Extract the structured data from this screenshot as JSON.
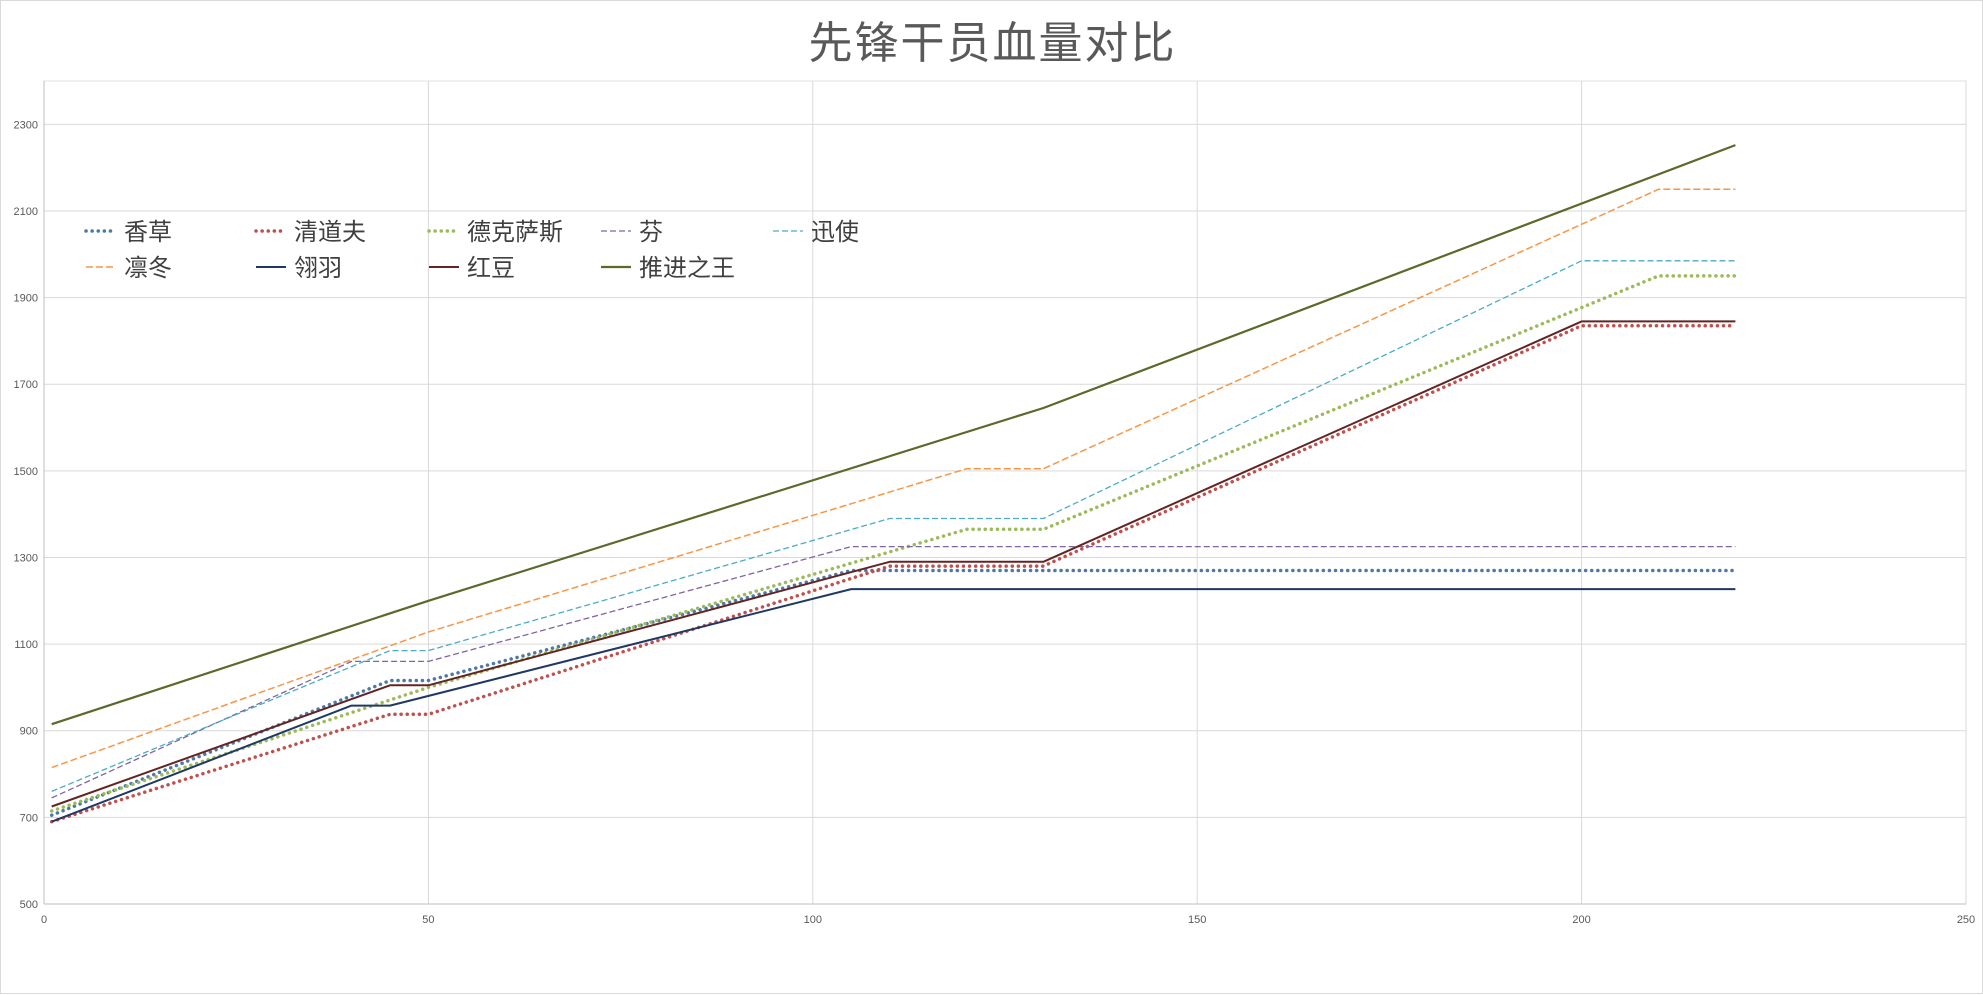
{
  "chart_data": {
    "type": "line",
    "title": "先锋干员血量对比",
    "xlabel": "",
    "ylabel": "",
    "xlim": [
      0,
      250
    ],
    "ylim": [
      500,
      2400
    ],
    "x_ticks": [
      0,
      50,
      100,
      150,
      200,
      250
    ],
    "y_ticks": [
      500,
      700,
      900,
      1100,
      1300,
      1500,
      1700,
      1900,
      2100,
      2300
    ],
    "grid": true,
    "legend_position": "top-left",
    "series": [
      {
        "name": "香草",
        "color": "#4e79a7",
        "style": "dotted",
        "x": [
          1,
          45,
          50,
          105,
          220
        ],
        "y": [
          705,
          1016,
          1016,
          1270,
          1270
        ]
      },
      {
        "name": "清道夫",
        "color": "#c0504d",
        "style": "dotted",
        "x": [
          1,
          45,
          50,
          110,
          130,
          200,
          220
        ],
        "y": [
          690,
          938,
          938,
          1280,
          1280,
          1835,
          1835
        ]
      },
      {
        "name": "德克萨斯",
        "color": "#9bbb59",
        "style": "dotted",
        "x": [
          1,
          50,
          120,
          130,
          210,
          220
        ],
        "y": [
          715,
          1000,
          1365,
          1365,
          1950,
          1950
        ]
      },
      {
        "name": "芬",
        "color": "#8064a2",
        "style": "dashed-thin",
        "x": [
          1,
          40,
          50,
          105,
          220
        ],
        "y": [
          745,
          1060,
          1060,
          1325,
          1325
        ]
      },
      {
        "name": "迅使",
        "color": "#4bacc6",
        "style": "dashed-thin",
        "x": [
          1,
          45,
          50,
          110,
          130,
          200,
          220
        ],
        "y": [
          760,
          1085,
          1085,
          1390,
          1390,
          1985,
          1985
        ]
      },
      {
        "name": "凛冬",
        "color": "#f79646",
        "style": "dashed",
        "x": [
          1,
          50,
          120,
          130,
          210,
          220
        ],
        "y": [
          815,
          1128,
          1505,
          1505,
          2150,
          2150
        ]
      },
      {
        "name": "翎羽",
        "color": "#1f3864",
        "style": "solid",
        "x": [
          1,
          40,
          45,
          105,
          220
        ],
        "y": [
          690,
          958,
          958,
          1227,
          1227
        ]
      },
      {
        "name": "红豆",
        "color": "#632523",
        "style": "solid",
        "x": [
          1,
          45,
          50,
          110,
          130,
          200,
          220
        ],
        "y": [
          725,
          1005,
          1005,
          1290,
          1290,
          1845,
          1845
        ]
      },
      {
        "name": "推进之王",
        "color": "#5a6a2a",
        "style": "solid-thick",
        "x": [
          1,
          50,
          130,
          220
        ],
        "y": [
          915,
          1200,
          1645,
          2252
        ]
      }
    ]
  }
}
